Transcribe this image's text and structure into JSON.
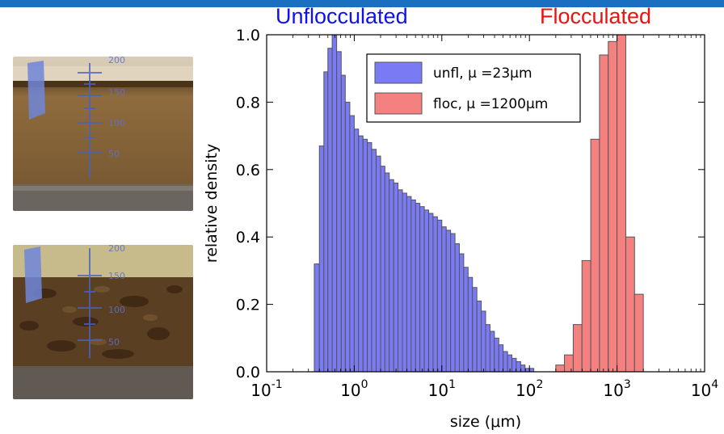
{
  "colors": {
    "topbar": "#1a6fc0",
    "unfl_fill": "#7a7af5",
    "floc_fill": "#f58080",
    "bar_edge": "#555555",
    "label_unfl": "#1010f0",
    "label_floc": "#ee1111"
  },
  "images": {
    "top": {
      "alt": "beaker of unflocculated suspension",
      "marks": [
        "200",
        "150",
        "100",
        "50"
      ]
    },
    "bottom": {
      "alt": "beaker of flocculated suspension",
      "marks": [
        "200",
        "150",
        "100",
        "50"
      ]
    }
  },
  "chart_data": {
    "type": "bar",
    "title": "",
    "xlabel": "size (μm)",
    "ylabel": "relative density",
    "xscale": "log",
    "xlim": [
      0.1,
      10000
    ],
    "ylim": [
      0,
      1.0
    ],
    "xticks": [
      {
        "value": 0.1,
        "base": "10",
        "exp": "-1"
      },
      {
        "value": 1,
        "base": "10",
        "exp": "0"
      },
      {
        "value": 10,
        "base": "10",
        "exp": "1"
      },
      {
        "value": 100,
        "base": "10",
        "exp": "2"
      },
      {
        "value": 1000,
        "base": "10",
        "exp": "3"
      },
      {
        "value": 10000,
        "base": "10",
        "exp": "4"
      }
    ],
    "yticks": [
      "0.0",
      "0.2",
      "0.4",
      "0.6",
      "0.8",
      "1.0"
    ],
    "annotations": [
      {
        "text": "Unflocculated",
        "color": "#1010f0"
      },
      {
        "text": "Flocculated",
        "color": "#ee1111"
      }
    ],
    "legend_position": "top-center",
    "series": [
      {
        "name": "unfl, μ =23μm",
        "color": "#7a7af5",
        "bin_edges": [
          0.1,
          0.11,
          0.13,
          0.14,
          0.16,
          0.18,
          0.2,
          0.22,
          0.25,
          0.28,
          0.32,
          0.35,
          0.4,
          0.45,
          0.5,
          0.56,
          0.63,
          0.71,
          0.79,
          0.89,
          1.0,
          1.12,
          1.26,
          1.41,
          1.58,
          1.78,
          2.0,
          2.24,
          2.51,
          2.82,
          3.16,
          3.55,
          3.98,
          4.47,
          5.01,
          5.62,
          6.31,
          7.08,
          7.94,
          8.91,
          10.0,
          11.22,
          12.59,
          14.13,
          15.85,
          17.78,
          19.95,
          22.39,
          25.12,
          28.18,
          31.62,
          35.48,
          39.81,
          44.67,
          50.12,
          56.23,
          63.1,
          70.79,
          79.43,
          89.13,
          100.0,
          112.2,
          125.89,
          141.25,
          158.49
        ],
        "values": [
          0.0,
          0.0,
          0.0,
          0.0,
          0.0,
          0.0,
          0.0,
          0.0,
          0.0,
          0.0,
          0.0,
          0.32,
          0.67,
          0.89,
          0.96,
          1.0,
          0.95,
          0.88,
          0.8,
          0.76,
          0.72,
          0.7,
          0.69,
          0.68,
          0.66,
          0.64,
          0.61,
          0.59,
          0.57,
          0.56,
          0.54,
          0.53,
          0.52,
          0.51,
          0.5,
          0.49,
          0.48,
          0.47,
          0.46,
          0.45,
          0.43,
          0.42,
          0.41,
          0.38,
          0.35,
          0.31,
          0.28,
          0.25,
          0.21,
          0.18,
          0.14,
          0.12,
          0.1,
          0.08,
          0.06,
          0.05,
          0.04,
          0.03,
          0.02,
          0.01,
          0.01,
          0.0,
          0.0,
          0.0
        ]
      },
      {
        "name": "floc, μ =1200μm",
        "color": "#f58080",
        "bin_edges": [
          200,
          251.19,
          316.23,
          398.11,
          501.19,
          630.96,
          794.33,
          1000.0,
          1258.93,
          1584.89,
          1995.26,
          2511.89
        ],
        "values": [
          0.02,
          0.05,
          0.14,
          0.33,
          0.69,
          0.94,
          0.98,
          1.0,
          0.4,
          0.23,
          0.0
        ]
      }
    ]
  }
}
